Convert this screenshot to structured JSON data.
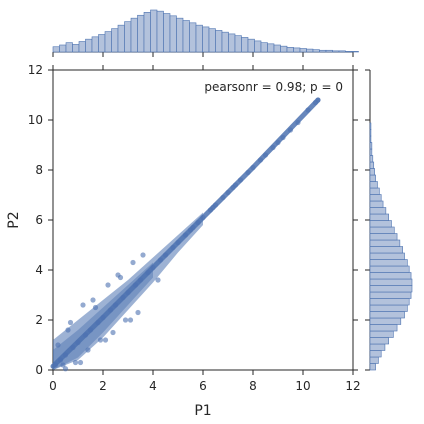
{
  "chart_data": {
    "type": "scatter",
    "subtype": "jointplot",
    "x_label": "P1",
    "y_label": "P2",
    "x_lim": [
      0,
      12
    ],
    "y_lim": [
      0,
      12
    ],
    "x_ticks": [
      0,
      2,
      4,
      6,
      8,
      10,
      12
    ],
    "y_ticks": [
      0,
      2,
      4,
      6,
      8,
      10,
      12
    ],
    "annotation": "pearsonr = 0.98; p = 0",
    "grid": false,
    "colors": {
      "points": "#4c72b0",
      "hist_fill": "#b3c2dc",
      "hist_edge": "#4c72b0",
      "axis": "#262626"
    },
    "trend": {
      "x": [
        0,
        2,
        4,
        6,
        8,
        10.6
      ],
      "y": [
        0.15,
        2.1,
        4.1,
        6.1,
        8.1,
        10.8
      ]
    },
    "scatter_points": {
      "x": [
        10.6,
        10.5,
        10.2,
        9.8,
        9.5,
        9.2,
        9.0,
        8.8,
        8.5,
        8.3,
        8.0,
        7.8,
        7.5,
        7.3,
        7.0,
        6.8,
        6.5,
        6.3,
        6.0,
        5.8,
        5.5,
        5.3,
        5.0,
        4.8,
        4.5,
        4.3,
        4.0,
        3.8,
        3.5,
        3.3,
        3.0,
        2.8,
        2.5,
        2.3,
        2.0,
        1.8,
        1.5,
        1.3,
        1.0,
        0.8,
        0.5,
        0.3,
        0.1,
        0.6,
        1.2,
        1.6,
        2.2,
        2.6,
        3.2,
        3.6,
        0.4,
        0.9,
        1.4,
        1.9,
        2.4,
        2.9,
        3.4,
        0.2,
        0.7,
        4.2,
        3.1,
        2.7,
        1.1,
        0.5,
        2.1,
        1.7,
        5.6,
        6.4,
        7.2
      ],
      "y": [
        10.8,
        10.7,
        10.4,
        9.9,
        9.6,
        9.3,
        9.1,
        8.9,
        8.6,
        8.4,
        8.1,
        7.9,
        7.6,
        7.4,
        7.1,
        6.9,
        6.6,
        6.4,
        6.1,
        5.9,
        5.6,
        5.4,
        5.1,
        4.9,
        4.6,
        4.4,
        4.1,
        3.9,
        3.6,
        3.4,
        3.1,
        2.9,
        2.6,
        2.4,
        2.1,
        1.9,
        1.6,
        1.4,
        1.1,
        0.9,
        0.6,
        0.4,
        0.2,
        1.6,
        2.6,
        2.8,
        3.4,
        3.8,
        4.3,
        4.6,
        0.2,
        0.3,
        0.8,
        1.2,
        1.5,
        2.0,
        2.3,
        1.0,
        1.9,
        3.6,
        2.0,
        3.7,
        0.3,
        0.05,
        1.2,
        2.5,
        5.7,
        6.5,
        7.3
      ]
    },
    "density_bands": [
      {
        "x": [
          0,
          1,
          2,
          3,
          4,
          5,
          6
        ],
        "y_low": [
          0,
          0.4,
          1.3,
          2.4,
          3.5,
          4.7,
          5.8
        ],
        "y_high": [
          1.2,
          2.0,
          2.8,
          3.6,
          4.5,
          5.4,
          6.3
        ]
      },
      {
        "x": [
          0,
          1,
          2,
          3,
          4
        ],
        "y_low": [
          0,
          0.5,
          1.5,
          2.6,
          3.7
        ],
        "y_high": [
          0.8,
          1.6,
          2.5,
          3.4,
          4.3
        ]
      }
    ],
    "x_hist": {
      "bin_width": 0.26,
      "counts": [
        9,
        12,
        16,
        13,
        18,
        22,
        26,
        30,
        35,
        40,
        46,
        52,
        58,
        63,
        68,
        72,
        70,
        66,
        62,
        58,
        54,
        50,
        46,
        43,
        40,
        37,
        34,
        31,
        28,
        25,
        22,
        19,
        16,
        14,
        12,
        10,
        8,
        7,
        6,
        5,
        4,
        3,
        3,
        2,
        2,
        1,
        1
      ]
    },
    "y_hist": {
      "bin_width": 0.26,
      "counts": [
        6,
        9,
        12,
        16,
        20,
        25,
        29,
        33,
        37,
        40,
        42,
        44,
        45,
        45,
        44,
        42,
        40,
        37,
        35,
        32,
        29,
        26,
        23,
        20,
        17,
        14,
        12,
        10,
        8,
        6,
        5,
        4,
        3,
        2,
        2,
        1,
        1,
        1
      ]
    }
  }
}
